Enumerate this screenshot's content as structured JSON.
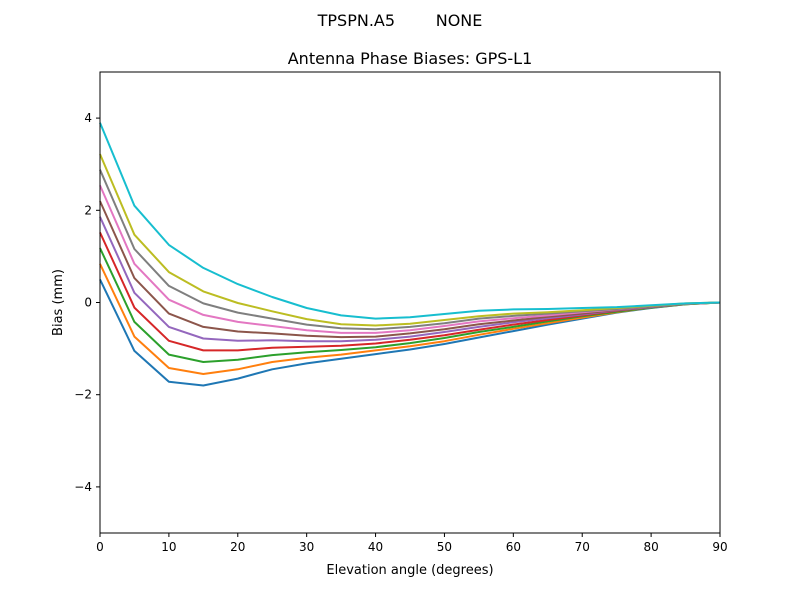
{
  "suptitle": "TPSPN.A5        NONE",
  "chart_data": {
    "type": "line",
    "title": "Antenna Phase Biases: GPS-L1",
    "xlabel": "Elevation angle (degrees)",
    "ylabel": "Bias (mm)",
    "xlim": [
      0,
      90
    ],
    "ylim": [
      -5,
      5
    ],
    "xticks": [
      0,
      10,
      20,
      30,
      40,
      50,
      60,
      70,
      80,
      90
    ],
    "yticks": [
      -4,
      -2,
      0,
      2,
      4
    ],
    "ytick_labels": [
      "−4",
      "−2",
      "0",
      "2",
      "4"
    ],
    "grid": false,
    "legend": "none",
    "colors": [
      "#1f77b4",
      "#ff7f0e",
      "#2ca02c",
      "#d62728",
      "#9467bd",
      "#8c564b",
      "#e377c2",
      "#7f7f7f",
      "#bcbd22",
      "#17becf"
    ],
    "x": [
      0,
      5,
      10,
      15,
      20,
      25,
      30,
      35,
      40,
      45,
      50,
      55,
      60,
      65,
      70,
      75,
      80,
      85,
      90
    ],
    "series": [
      {
        "values": [
          0.5,
          -1.05,
          -1.72,
          -1.8,
          -1.65,
          -1.45,
          -1.32,
          -1.22,
          -1.12,
          -1.02,
          -0.9,
          -0.76,
          -0.62,
          -0.48,
          -0.35,
          -0.22,
          -0.12,
          -0.04,
          0
        ]
      },
      {
        "values": [
          0.84,
          -0.74,
          -1.42,
          -1.55,
          -1.45,
          -1.29,
          -1.2,
          -1.13,
          -1.04,
          -0.95,
          -0.84,
          -0.7,
          -0.57,
          -0.45,
          -0.33,
          -0.21,
          -0.11,
          -0.04,
          0
        ]
      },
      {
        "values": [
          1.18,
          -0.42,
          -1.13,
          -1.29,
          -1.24,
          -1.14,
          -1.08,
          -1.03,
          -0.97,
          -0.88,
          -0.77,
          -0.64,
          -0.53,
          -0.41,
          -0.3,
          -0.2,
          -0.11,
          -0.04,
          0
        ]
      },
      {
        "values": [
          1.52,
          -0.11,
          -0.83,
          -1.04,
          -1.04,
          -0.98,
          -0.96,
          -0.94,
          -0.89,
          -0.81,
          -0.71,
          -0.59,
          -0.48,
          -0.38,
          -0.28,
          -0.18,
          -0.1,
          -0.03,
          0
        ]
      },
      {
        "values": [
          1.86,
          0.21,
          -0.53,
          -0.78,
          -0.83,
          -0.82,
          -0.84,
          -0.84,
          -0.81,
          -0.74,
          -0.64,
          -0.53,
          -0.43,
          -0.34,
          -0.26,
          -0.17,
          -0.1,
          -0.03,
          0
        ]
      },
      {
        "values": [
          2.2,
          0.53,
          -0.24,
          -0.53,
          -0.63,
          -0.67,
          -0.72,
          -0.75,
          -0.74,
          -0.67,
          -0.58,
          -0.47,
          -0.39,
          -0.31,
          -0.24,
          -0.16,
          -0.09,
          -0.03,
          0
        ]
      },
      {
        "values": [
          2.54,
          0.84,
          0.06,
          -0.27,
          -0.42,
          -0.51,
          -0.6,
          -0.66,
          -0.66,
          -0.6,
          -0.51,
          -0.41,
          -0.34,
          -0.28,
          -0.21,
          -0.15,
          -0.08,
          -0.03,
          0
        ]
      },
      {
        "values": [
          2.88,
          1.16,
          0.36,
          -0.02,
          -0.22,
          -0.35,
          -0.48,
          -0.56,
          -0.58,
          -0.53,
          -0.45,
          -0.35,
          -0.29,
          -0.24,
          -0.19,
          -0.14,
          -0.08,
          -0.03,
          0
        ]
      },
      {
        "values": [
          3.22,
          1.47,
          0.66,
          0.24,
          -0.01,
          -0.19,
          -0.36,
          -0.47,
          -0.5,
          -0.46,
          -0.38,
          -0.3,
          -0.24,
          -0.21,
          -0.17,
          -0.12,
          -0.07,
          -0.02,
          0
        ]
      },
      {
        "values": [
          3.9,
          2.1,
          1.25,
          0.75,
          0.4,
          0.12,
          -0.12,
          -0.28,
          -0.35,
          -0.32,
          -0.25,
          -0.18,
          -0.15,
          -0.14,
          -0.12,
          -0.1,
          -0.06,
          -0.02,
          0
        ]
      }
    ]
  }
}
